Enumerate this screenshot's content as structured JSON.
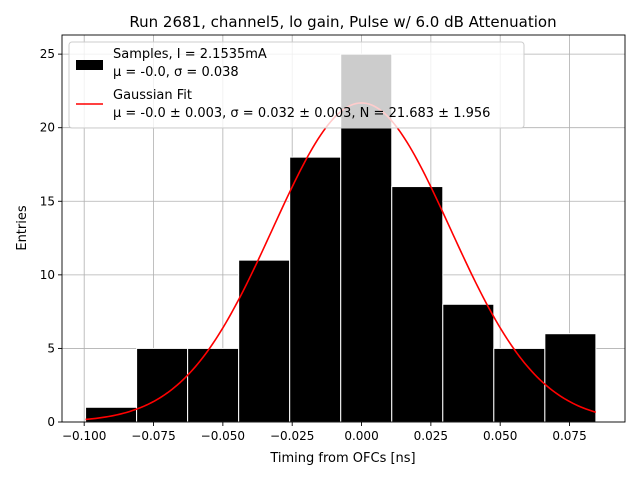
{
  "chart_data": {
    "type": "bar",
    "title": "Run 2681, channel5, lo gain, Pulse w/ 6.0 dB Attenuation",
    "xlabel": "Timing from OFCs [ns]",
    "ylabel": "Entries",
    "xlim": [
      -0.108,
      0.095
    ],
    "ylim": [
      0,
      26.3
    ],
    "grid": true,
    "legend_position": "top-left",
    "x_ticks": [
      -0.1,
      -0.075,
      -0.05,
      -0.025,
      0.0,
      0.025,
      0.05,
      0.075
    ],
    "x_tick_labels": [
      "−0.100",
      "−0.075",
      "−0.050",
      "−0.025",
      "0.000",
      "0.025",
      "0.050",
      "0.075"
    ],
    "y_ticks": [
      0,
      5,
      10,
      15,
      20,
      25
    ],
    "y_tick_labels": [
      "0",
      "5",
      "10",
      "15",
      "20",
      "25"
    ],
    "bins": {
      "edges": [
        -0.0995,
        -0.0811,
        -0.0627,
        -0.0443,
        -0.0259,
        -0.0075,
        0.0109,
        0.0293,
        0.0477,
        0.0661,
        0.0845
      ],
      "counts": [
        1,
        5,
        5,
        11,
        18,
        25,
        16,
        8,
        5,
        6
      ]
    },
    "series": [
      {
        "name": "Samples, I = 2.1535mA",
        "stats_line": "μ = -0.0, σ = 0.038",
        "kind": "histogram",
        "color": "#000000"
      },
      {
        "name": "Gaussian Fit",
        "stats_line": "μ = -0.0 ± 0.003, σ = 0.032 ± 0.003, N = 21.683 ± 1.956",
        "kind": "line",
        "color": "#ff0000",
        "fit": {
          "mu": 0.0,
          "sigma": 0.032,
          "N": 21.683
        },
        "x_range": [
          -0.0995,
          0.0845
        ]
      }
    ]
  }
}
